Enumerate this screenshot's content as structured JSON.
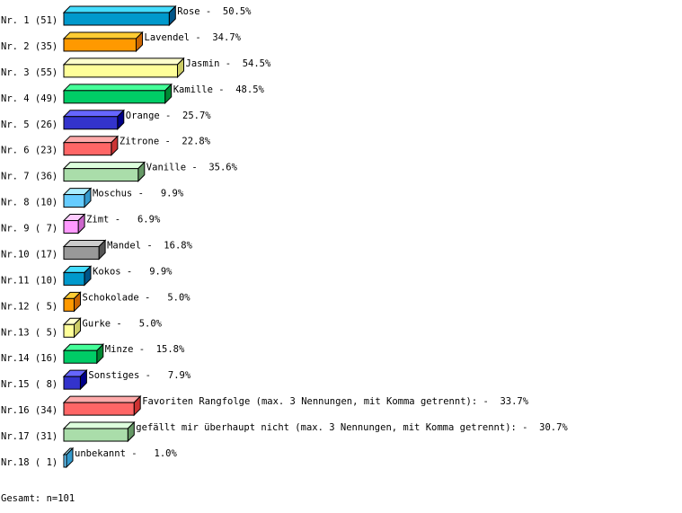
{
  "chart_data": {
    "type": "bar",
    "orientation": "horizontal",
    "style": "3d",
    "grid": false,
    "rank_labels": [
      "Nr. 1 (51)",
      "Nr. 2 (35)",
      "Nr. 3 (55)",
      "Nr. 4 (49)",
      "Nr. 5 (26)",
      "Nr. 6 (23)",
      "Nr. 7 (36)",
      "Nr. 8 (10)",
      "Nr. 9 ( 7)",
      "Nr.10 (17)",
      "Nr.11 (10)",
      "Nr.12 ( 5)",
      "Nr.13 ( 5)",
      "Nr.14 (16)",
      "Nr.15 ( 8)",
      "Nr.16 (34)",
      "Nr.17 (31)",
      "Nr.18 ( 1)"
    ],
    "categories": [
      "Rose",
      "Lavendel",
      "Jasmin",
      "Kamille",
      "Orange",
      "Zitrone",
      "Vanille",
      "Moschus",
      "Zimt",
      "Mandel",
      "Kokos",
      "Schokolade",
      "Gurke",
      "Minze",
      "Sonstiges",
      "Favoriten Rangfolge (max. 3 Nennungen, mit Komma getrennt):",
      "gefällt mir überhaupt nicht (max. 3 Nennungen, mit Komma getrennt):",
      "unbekannt"
    ],
    "values": [
      51,
      35,
      55,
      49,
      26,
      23,
      36,
      10,
      7,
      17,
      10,
      5,
      5,
      16,
      8,
      34,
      31,
      1
    ],
    "percent_labels": [
      "50.5%",
      "34.7%",
      "54.5%",
      "48.5%",
      "25.7%",
      "22.8%",
      "35.6%",
      "9.9%",
      "6.9%",
      "16.8%",
      "9.9%",
      "5.0%",
      "5.0%",
      "15.8%",
      "7.9%",
      "33.7%",
      "30.7%",
      "1.0%"
    ],
    "colors": [
      [
        "#0099cc",
        "#44ddff",
        "#005588"
      ],
      [
        "#ff9900",
        "#ffcc33",
        "#cc6600"
      ],
      [
        "#ffff99",
        "#ffffcc",
        "#cccc66"
      ],
      [
        "#00cc66",
        "#44ff99",
        "#008833"
      ],
      [
        "#3333cc",
        "#6666ff",
        "#000088"
      ],
      [
        "#ff6666",
        "#ffaaaa",
        "#cc3333"
      ],
      [
        "#aaddaa",
        "#ddffdd",
        "#669966"
      ],
      [
        "#66ccff",
        "#aaeeff",
        "#3399cc"
      ],
      [
        "#ff99ff",
        "#ffccff",
        "#cc66cc"
      ],
      [
        "#999999",
        "#cccccc",
        "#555555"
      ]
    ],
    "footer": "Gesamt: n=101"
  }
}
